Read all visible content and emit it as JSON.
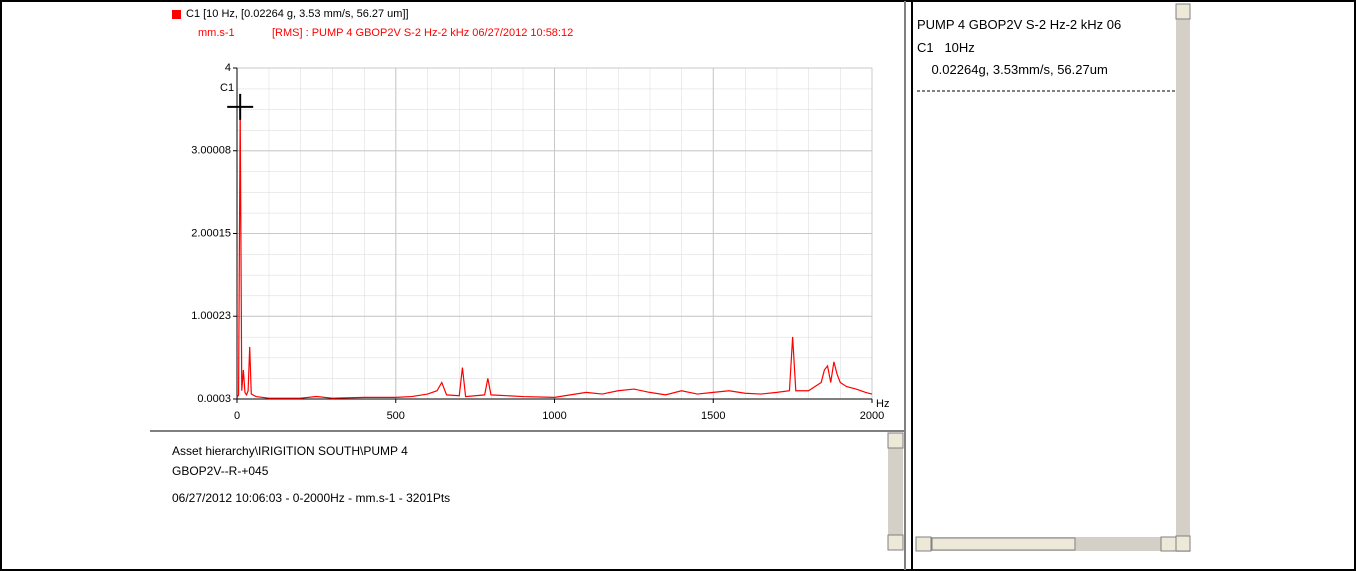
{
  "chart_data": {
    "type": "line",
    "subtitle_unit": "mm.s-1",
    "subtitle": "[RMS] : PUMP 4 GBOP2V S-2 Hz-2 kHz 06/27/2012 10:58:12",
    "y_axis_label": "C1",
    "x_axis_label": "Hz",
    "x": [
      0,
      5,
      10,
      15,
      20,
      25,
      30,
      35,
      40,
      45,
      60,
      100,
      200,
      250,
      300,
      400,
      500,
      550,
      600,
      630,
      645,
      660,
      700,
      710,
      720,
      780,
      790,
      800,
      900,
      1000,
      1050,
      1100,
      1150,
      1200,
      1250,
      1300,
      1350,
      1400,
      1450,
      1500,
      1550,
      1600,
      1650,
      1700,
      1740,
      1750,
      1760,
      1800,
      1820,
      1840,
      1850,
      1860,
      1870,
      1880,
      1890,
      1900,
      1920,
      1950,
      1980,
      2000
    ],
    "series": [
      {
        "name": "C1 [10 Hz, [0.02264 g, 3.53 mm/s, 56.27 um]]",
        "color": "#ff0000",
        "values": [
          0.02,
          0.05,
          3.53,
          0.1,
          0.35,
          0.08,
          0.05,
          0.1,
          0.63,
          0.06,
          0.03,
          0.01,
          0.01,
          0.03,
          0.01,
          0.02,
          0.02,
          0.03,
          0.06,
          0.1,
          0.2,
          0.05,
          0.04,
          0.38,
          0.03,
          0.05,
          0.25,
          0.05,
          0.03,
          0.02,
          0.05,
          0.08,
          0.06,
          0.1,
          0.12,
          0.08,
          0.05,
          0.1,
          0.06,
          0.08,
          0.1,
          0.07,
          0.06,
          0.08,
          0.1,
          0.75,
          0.1,
          0.1,
          0.15,
          0.2,
          0.35,
          0.4,
          0.2,
          0.45,
          0.3,
          0.2,
          0.15,
          0.12,
          0.08,
          0.06
        ]
      }
    ],
    "xlim": [
      0,
      2000
    ],
    "xticks": [
      0,
      500,
      1000,
      1500,
      2000
    ],
    "ylim": [
      0.0003,
      4
    ],
    "yticks": [
      0.0003,
      1.00023,
      2.00015,
      3.00008,
      4
    ],
    "grid": true
  },
  "info_panel": {
    "lines": [
      "Asset hierarchy\\IRIGITION SOUTH\\PUMP 4",
      "GBOP2V--R-+045",
      "06/27/2012 10:06:03 - 0-2000Hz - mm.s-1 - 3201Pts"
    ]
  },
  "cursor_panel": {
    "lines": [
      "PUMP 4 GBOP2V S-2 Hz-2 kHz 06",
      "C1   10Hz",
      "    0.02264g, 3.53mm/s, 56.27um"
    ]
  }
}
